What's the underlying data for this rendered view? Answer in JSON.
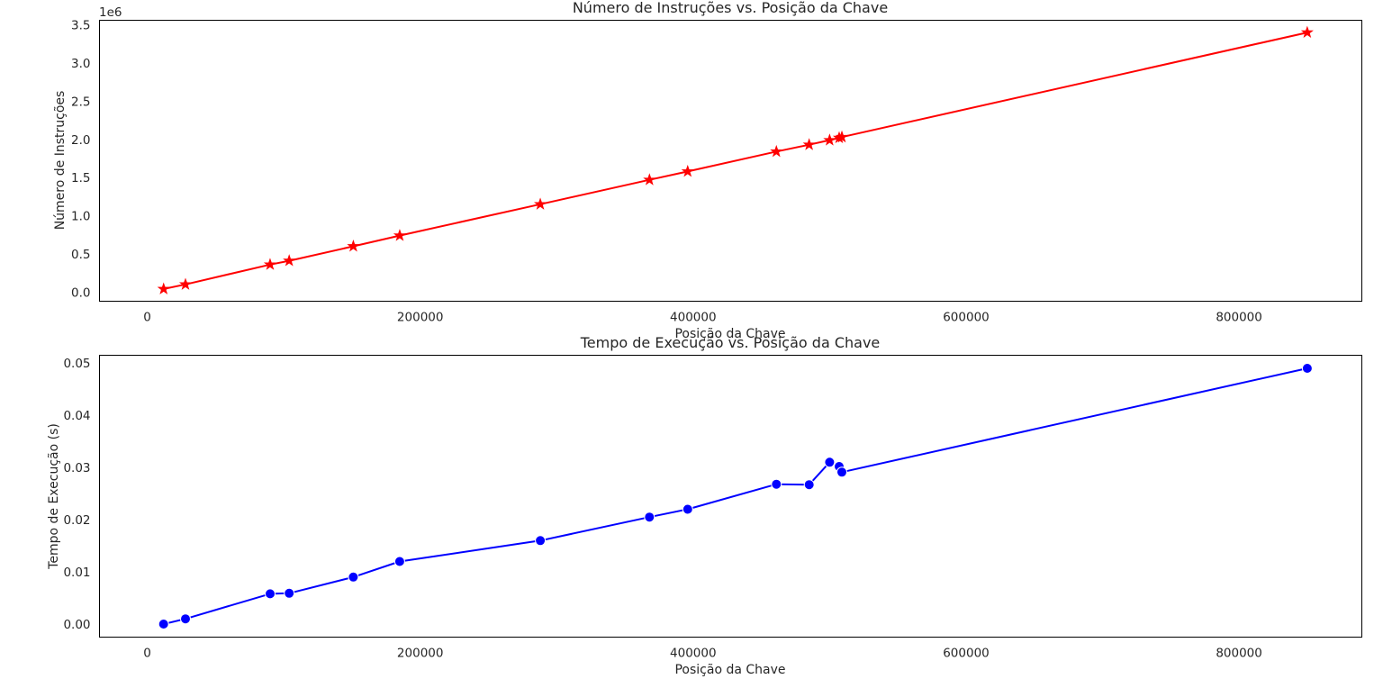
{
  "chart_data": [
    {
      "type": "line",
      "title": "Número de Instruções vs. Posição da Chave",
      "xlabel": "Posição da Chave",
      "ylabel": "Número de Instruções",
      "y_offset_label": "1e6",
      "marker": "star",
      "color": "#ff0000",
      "xlim": [
        -35000,
        890000
      ],
      "ylim": [
        -120000,
        3560000
      ],
      "x_ticks": [
        0,
        200000,
        400000,
        600000,
        800000
      ],
      "x_tick_labels": [
        "0",
        "200000",
        "400000",
        "600000",
        "800000"
      ],
      "y_ticks": [
        0,
        500000,
        1000000,
        1500000,
        2000000,
        2500000,
        3000000,
        3500000
      ],
      "y_tick_labels": [
        "0.0",
        "0.5",
        "1.0",
        "1.5",
        "2.0",
        "2.5",
        "3.0",
        "3.5"
      ],
      "grid": false,
      "series": [
        {
          "x": [
            12000,
            28000,
            90000,
            104000,
            151000,
            185000,
            288000,
            368000,
            396000,
            461000,
            485000,
            500000,
            507000,
            509000,
            850000
          ],
          "y": [
            40000,
            100000,
            360000,
            410000,
            600000,
            740000,
            1150000,
            1470000,
            1580000,
            1840000,
            1930000,
            1990000,
            2020000,
            2030000,
            3400000
          ]
        }
      ]
    },
    {
      "type": "line",
      "title": "Tempo de Execução vs. Posição da Chave",
      "xlabel": "Posição da Chave",
      "ylabel": "Tempo de Execução (s)",
      "marker": "circle",
      "color": "#0000ff",
      "xlim": [
        -35000,
        890000
      ],
      "ylim": [
        -0.0025,
        0.0515
      ],
      "x_ticks": [
        0,
        200000,
        400000,
        600000,
        800000
      ],
      "x_tick_labels": [
        "0",
        "200000",
        "400000",
        "600000",
        "800000"
      ],
      "y_ticks": [
        0,
        0.01,
        0.02,
        0.03,
        0.04,
        0.05
      ],
      "y_tick_labels": [
        "0.00",
        "0.01",
        "0.02",
        "0.03",
        "0.04",
        "0.05"
      ],
      "grid": false,
      "series": [
        {
          "x": [
            12000,
            28000,
            90000,
            104000,
            151000,
            185000,
            288000,
            368000,
            396000,
            461000,
            485000,
            500000,
            507000,
            509000,
            850000
          ],
          "y": [
            0.0,
            0.001,
            0.0058,
            0.0059,
            0.009,
            0.012,
            0.016,
            0.0205,
            0.022,
            0.0268,
            0.0267,
            0.031,
            0.0302,
            0.0291,
            0.049
          ]
        }
      ]
    }
  ]
}
